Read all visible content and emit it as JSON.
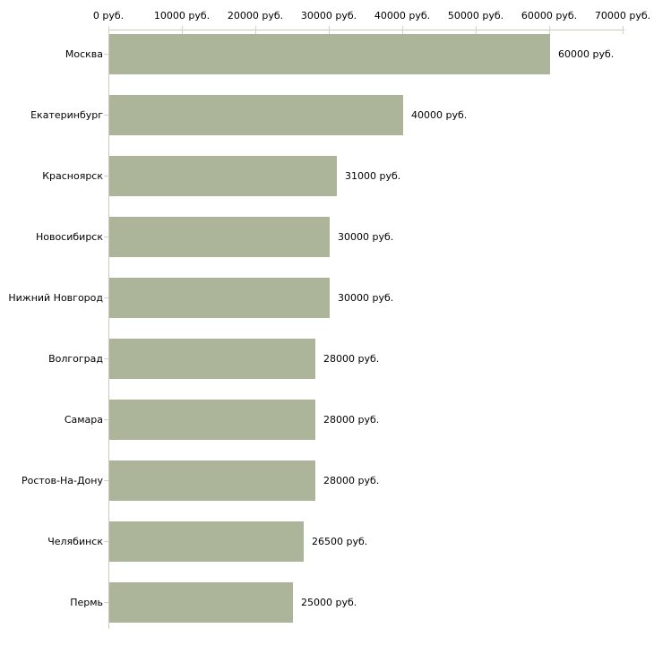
{
  "chart_data": {
    "type": "bar",
    "orientation": "horizontal",
    "title": "",
    "xlabel": "",
    "ylabel": "",
    "categories": [
      "Москва",
      "Екатеринбург",
      "Красноярск",
      "Новосибирск",
      "Нижний Новгород",
      "Волгоград",
      "Самара",
      "Ростов-На-Дону",
      "Челябинск",
      "Пермь"
    ],
    "values": [
      60000,
      40000,
      31000,
      30000,
      30000,
      28000,
      28000,
      28000,
      26500,
      25000
    ],
    "value_labels": [
      "60000 руб.",
      "40000 руб.",
      "31000 руб.",
      "30000 руб.",
      "30000 руб.",
      "28000 руб.",
      "28000 руб.",
      "28000 руб.",
      "26500 руб.",
      "25000 руб."
    ],
    "x_ticks": [
      0,
      10000,
      20000,
      30000,
      40000,
      50000,
      60000,
      70000
    ],
    "x_tick_labels": [
      "0 руб.",
      "10000 руб.",
      "20000 руб.",
      "30000 руб.",
      "40000 руб.",
      "50000 руб.",
      "60000 руб.",
      "70000 руб."
    ],
    "xlim": [
      0,
      70000
    ],
    "grid": false,
    "legend": false,
    "colors": {
      "bar_fill": "#acb49a",
      "axis_line": "#c9cbbd",
      "tick_mark": "#d2d4be",
      "text": "#000000",
      "background": "#ffffff"
    }
  }
}
